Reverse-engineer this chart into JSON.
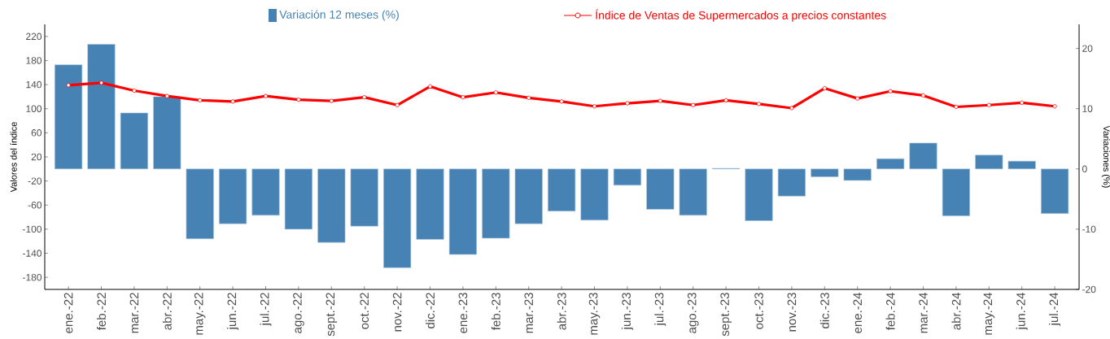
{
  "chart_data": {
    "type": "bar",
    "categories": [
      "ene.-22",
      "feb.-22",
      "mar.-22",
      "abr.-22",
      "may.-22",
      "jun.-22",
      "jul.-22",
      "ago.-22",
      "sept.-22",
      "oct.-22",
      "nov.-22",
      "dic.-22",
      "ene.-23",
      "feb.-23",
      "mar.-23",
      "abr.-23",
      "may.-23",
      "jun.-23",
      "jul.-23",
      "ago.-23",
      "sept.-23",
      "oct.-23",
      "nov.-23",
      "dic.-23",
      "ene.-24",
      "feb.-24",
      "mar.-24",
      "abr.-24",
      "may.-24",
      "jun.-24",
      "jul.-24"
    ],
    "series": [
      {
        "name": "Variación 12 meses (%)",
        "axis": "y2",
        "color": "#4682b4",
        "values": [
          17.3,
          20.7,
          9.3,
          12.0,
          -11.6,
          -9.1,
          -7.7,
          -10.0,
          -12.2,
          -9.5,
          -16.4,
          -11.7,
          -14.2,
          -11.5,
          -9.1,
          -7.0,
          -8.5,
          -2.7,
          -6.7,
          -7.7,
          0.1,
          -8.6,
          -4.5,
          -1.3,
          -1.9,
          1.7,
          4.3,
          -7.8,
          2.3,
          1.3,
          -7.4
        ]
      },
      {
        "name": "Índice de Ventas de Supermercados a precios constantes",
        "type": "line",
        "color": "#ff0000",
        "marker": "circle",
        "values": [
          139,
          143,
          130,
          121,
          114,
          112,
          121,
          115,
          113,
          119,
          106,
          137,
          119,
          127,
          118,
          112,
          104,
          109,
          113,
          106,
          114,
          108,
          101,
          134,
          117,
          129,
          122,
          103,
          106,
          110,
          104
        ]
      }
    ],
    "ylabel": "Valores del índice",
    "y2label": "Variaciones (%)",
    "ylim": [
      -200,
      240
    ],
    "yticks": [
      -180,
      -140,
      -100,
      -60,
      -20,
      20,
      60,
      100,
      140,
      180,
      220
    ],
    "y2lim": [
      -20,
      24
    ],
    "y2ticks": [
      -20,
      -10,
      0,
      10,
      20
    ],
    "legend": "top"
  }
}
